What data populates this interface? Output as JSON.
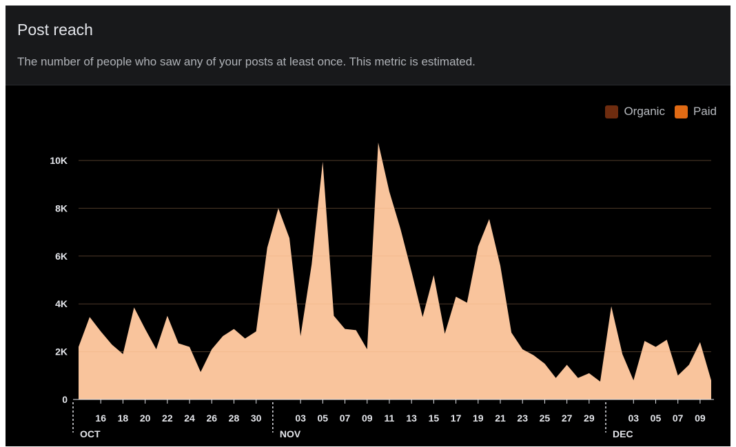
{
  "header": {
    "title": "Post reach",
    "subtitle": "The number of people who saw any of your posts at least once. This metric is estimated."
  },
  "legend": [
    {
      "label": "Organic",
      "color": "#6e2c0f"
    },
    {
      "label": "Paid",
      "color": "#e06a14"
    }
  ],
  "colors": {
    "area_fill": "#f9c49c",
    "axis": "#e4e6eb",
    "gridline": "#3a2a20",
    "background": "#000000"
  },
  "chart_data": {
    "type": "area",
    "ylim": [
      0,
      10800
    ],
    "y_ticks": [
      {
        "value": 0,
        "label": "0"
      },
      {
        "value": 2000,
        "label": "2K"
      },
      {
        "value": 4000,
        "label": "4K"
      },
      {
        "value": 6000,
        "label": "6K"
      },
      {
        "value": 8000,
        "label": "8K"
      },
      {
        "value": 10000,
        "label": "10K"
      }
    ],
    "x_tick_labels": [
      "16",
      "18",
      "20",
      "22",
      "24",
      "26",
      "28",
      "30",
      "03",
      "05",
      "07",
      "09",
      "11",
      "13",
      "15",
      "17",
      "19",
      "21",
      "23",
      "25",
      "27",
      "29",
      "03",
      "05",
      "07",
      "09"
    ],
    "months": [
      "OCT",
      "NOV",
      "DEC"
    ],
    "start_date": "2023-10-14",
    "series": [
      {
        "values": [
          2200,
          3450,
          2850,
          2300,
          1900,
          3850,
          2950,
          2100,
          3500,
          2350,
          2200,
          1150,
          2100,
          2650,
          2950,
          2550,
          2850,
          6350,
          8000,
          6750,
          2650,
          5650,
          9950,
          3500,
          2950,
          2900,
          2100,
          10750,
          8700,
          7150,
          5350,
          3450,
          5200,
          2750,
          4300,
          4050,
          6400,
          7550,
          5600,
          2800,
          2100,
          1850,
          1500,
          900,
          1450,
          900,
          1100,
          750,
          3900,
          1900,
          800,
          2450,
          2200,
          2500,
          1000,
          1450,
          2400,
          800
        ]
      }
    ]
  }
}
